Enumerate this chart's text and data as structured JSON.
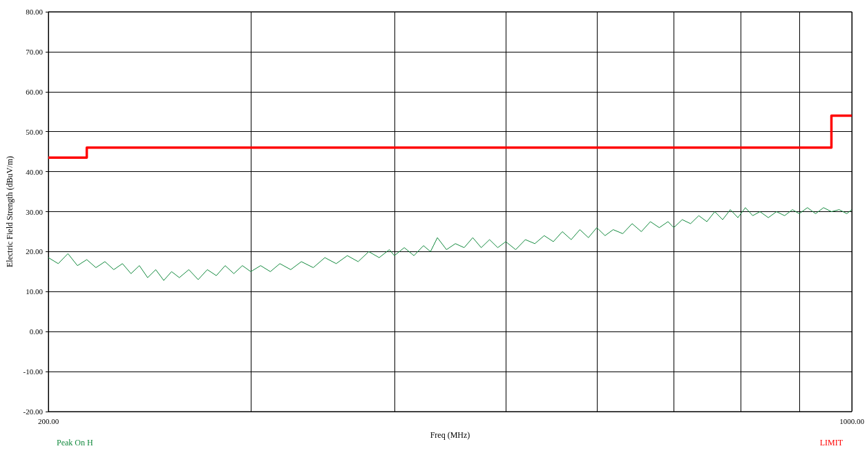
{
  "chart_data": {
    "type": "line",
    "xlabel": "Freq (MHz)",
    "ylabel": "Electric Field Strength (dBuV/m)",
    "log": "x",
    "grid": true,
    "legend": "bottom",
    "marker": "none",
    "line_style": "solid",
    "xlim": [
      200,
      1000
    ],
    "xticks": [
      {
        "value": 200,
        "label": "200.00"
      },
      {
        "value": 300,
        "label": null
      },
      {
        "value": 400,
        "label": null
      },
      {
        "value": 500,
        "label": null
      },
      {
        "value": 600,
        "label": null
      },
      {
        "value": 700,
        "label": null
      },
      {
        "value": 800,
        "label": null
      },
      {
        "value": 900,
        "label": null
      },
      {
        "value": 1000,
        "label": "1000.00"
      }
    ],
    "ylim": [
      -20,
      80
    ],
    "yticks": [
      {
        "value": -20,
        "label": "-20.00"
      },
      {
        "value": -10,
        "label": "-10.00"
      },
      {
        "value": 0,
        "label": "0.00"
      },
      {
        "value": 10,
        "label": "10.00"
      },
      {
        "value": 20,
        "label": "20.00"
      },
      {
        "value": 30,
        "label": "30.00"
      },
      {
        "value": 40,
        "label": "40.00"
      },
      {
        "value": 50,
        "label": "50.00"
      },
      {
        "value": 60,
        "label": "60.00"
      },
      {
        "value": 70,
        "label": "70.00"
      },
      {
        "value": 80,
        "label": "80.00"
      }
    ],
    "series": [
      {
        "name": "Peak On H",
        "color": "#138a3e",
        "x": [
          200,
          204,
          208,
          212,
          216,
          220,
          224,
          228,
          232,
          236,
          240,
          244,
          248,
          252,
          256,
          260,
          265,
          270,
          275,
          280,
          285,
          290,
          295,
          300,
          306,
          312,
          318,
          325,
          332,
          340,
          348,
          356,
          364,
          372,
          380,
          388,
          396,
          400,
          408,
          416,
          424,
          430,
          436,
          444,
          452,
          460,
          468,
          476,
          484,
          492,
          500,
          510,
          520,
          530,
          540,
          550,
          560,
          570,
          580,
          590,
          600,
          610,
          620,
          632,
          644,
          656,
          668,
          680,
          692,
          700,
          712,
          724,
          736,
          748,
          760,
          772,
          784,
          796,
          808,
          820,
          832,
          846,
          860,
          874,
          888,
          900,
          915,
          930,
          945,
          960,
          975,
          990,
          1000
        ],
        "values": [
          18.5,
          17,
          19.5,
          16.5,
          18,
          16,
          17.5,
          15.5,
          17,
          14.5,
          16.5,
          13.5,
          15.5,
          12.8,
          15,
          13.5,
          15.5,
          13,
          15.5,
          14,
          16.5,
          14.5,
          16.5,
          15,
          16.5,
          15,
          17,
          15.5,
          17.5,
          16,
          18.5,
          17,
          19,
          17.5,
          20,
          18.5,
          20.5,
          19,
          21,
          19,
          21.5,
          20,
          23.5,
          20.5,
          22,
          21,
          23.5,
          21,
          23,
          21,
          22.5,
          20.5,
          23,
          22,
          24,
          22.5,
          25,
          23,
          25.5,
          23.5,
          26,
          24,
          25.5,
          24.5,
          27,
          25,
          27.5,
          26,
          27.5,
          26,
          28,
          27,
          29,
          27.5,
          30,
          28,
          30.5,
          28.5,
          31,
          29,
          30,
          28.5,
          30,
          29,
          30.5,
          29.5,
          31,
          29.5,
          31,
          30,
          30.5,
          29.5,
          30.5
        ]
      },
      {
        "name": "LIMIT",
        "type": "step",
        "color": "#ff0000",
        "x": [
          200,
          216,
          960,
          1000
        ],
        "values": [
          43.5,
          46,
          54,
          54
        ]
      }
    ]
  }
}
